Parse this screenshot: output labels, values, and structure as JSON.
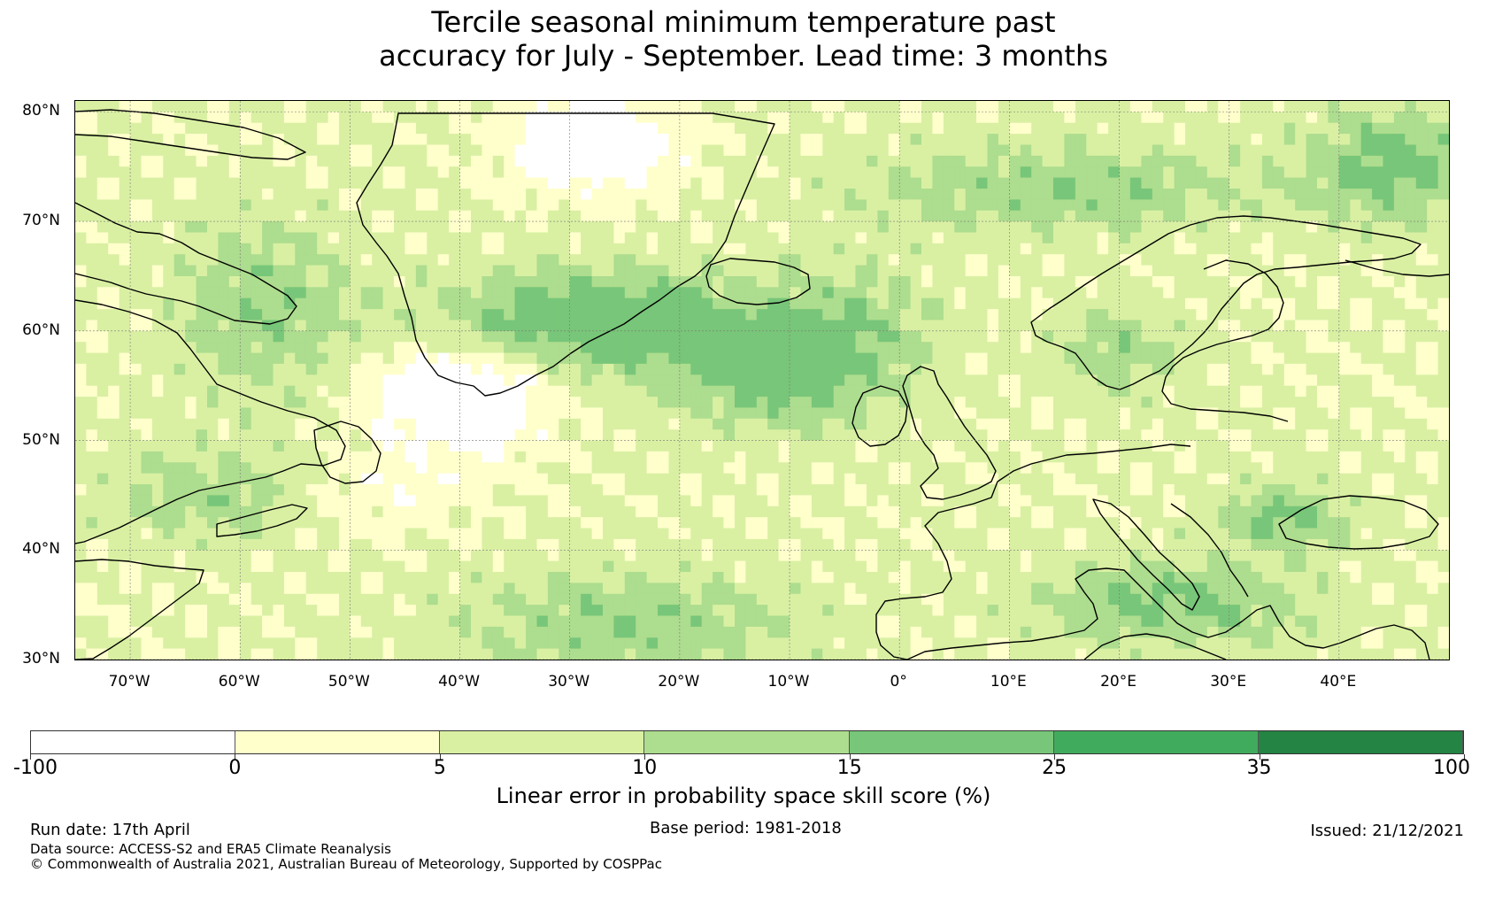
{
  "title_line1": "Tercile seasonal minimum temperature past",
  "title_line2": "accuracy for July - September. Lead time: 3 months",
  "map": {
    "extent": {
      "lon_min": -75,
      "lon_max": 50,
      "lat_min": 30,
      "lat_max": 81
    },
    "lat_ticks": [
      {
        "value": 80,
        "label": "80°N"
      },
      {
        "value": 70,
        "label": "70°N"
      },
      {
        "value": 60,
        "label": "60°N"
      },
      {
        "value": 50,
        "label": "50°N"
      },
      {
        "value": 40,
        "label": "40°N"
      },
      {
        "value": 30,
        "label": "30°N"
      }
    ],
    "lon_ticks": [
      {
        "value": -70,
        "label": "70°W"
      },
      {
        "value": -60,
        "label": "60°W"
      },
      {
        "value": -50,
        "label": "50°W"
      },
      {
        "value": -40,
        "label": "40°W"
      },
      {
        "value": -30,
        "label": "30°W"
      },
      {
        "value": -20,
        "label": "20°W"
      },
      {
        "value": -10,
        "label": "10°W"
      },
      {
        "value": 0,
        "label": "0°"
      },
      {
        "value": 10,
        "label": "10°E"
      },
      {
        "value": 20,
        "label": "20°E"
      },
      {
        "value": 30,
        "label": "30°E"
      },
      {
        "value": 40,
        "label": "40°E"
      }
    ],
    "grid_color": "#777777",
    "coast_color": "#000000"
  },
  "colorbar": {
    "bins": [
      {
        "from": -100,
        "to": 0,
        "color": "#ffffff"
      },
      {
        "from": 0,
        "to": 5,
        "color": "#ffffcc"
      },
      {
        "from": 5,
        "to": 10,
        "color": "#d9f0a3"
      },
      {
        "from": 10,
        "to": 15,
        "color": "#addd8e"
      },
      {
        "from": 15,
        "to": 25,
        "color": "#78c679"
      },
      {
        "from": 25,
        "to": 35,
        "color": "#41ab5d"
      },
      {
        "from": 35,
        "to": 100,
        "color": "#238443"
      }
    ],
    "tick_labels": [
      "-100",
      "0",
      "5",
      "10",
      "15",
      "25",
      "35",
      "100"
    ],
    "label": "Linear error in probability space skill score (%)"
  },
  "footer": {
    "run_date": "Run date: 17th April",
    "base_period": "Base period: 1981-2018",
    "issued": "Issued: 21/12/2021",
    "data_source": "Data source: ACCESS-S2 and ERA5 Climate Reanalysis",
    "copyright": "© Commonwealth of Australia 2021, Australian Bureau of Meteorology, Supported by COSPPac"
  }
}
